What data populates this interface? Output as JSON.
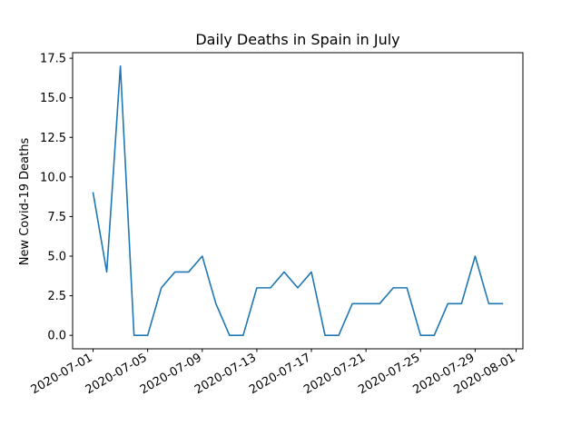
{
  "chart_data": {
    "type": "line",
    "title": "Daily Deaths in Spain in July",
    "xlabel": "",
    "ylabel": "New Covid-19 Deaths",
    "x": [
      "2020-07-01",
      "2020-07-02",
      "2020-07-03",
      "2020-07-04",
      "2020-07-05",
      "2020-07-06",
      "2020-07-07",
      "2020-07-08",
      "2020-07-09",
      "2020-07-10",
      "2020-07-11",
      "2020-07-12",
      "2020-07-13",
      "2020-07-14",
      "2020-07-15",
      "2020-07-16",
      "2020-07-17",
      "2020-07-18",
      "2020-07-19",
      "2020-07-20",
      "2020-07-21",
      "2020-07-22",
      "2020-07-23",
      "2020-07-24",
      "2020-07-25",
      "2020-07-26",
      "2020-07-27",
      "2020-07-28",
      "2020-07-29",
      "2020-07-30",
      "2020-07-31"
    ],
    "series": [
      {
        "color": "#1f77b4",
        "values": [
          9,
          4,
          17,
          0,
          0,
          3,
          4,
          4,
          5,
          2,
          0,
          0,
          3,
          3,
          4,
          3,
          4,
          0,
          0,
          2,
          2,
          2,
          3,
          3,
          0,
          0,
          2,
          2,
          5,
          2,
          2
        ]
      }
    ],
    "ylim": [
      -0.85,
      17.85
    ],
    "xlim": [
      "2020-06-29T12:00",
      "2020-08-01T12:00"
    ],
    "xticks": [
      "2020-07-01",
      "2020-07-05",
      "2020-07-09",
      "2020-07-13",
      "2020-07-17",
      "2020-07-21",
      "2020-07-25",
      "2020-07-29",
      "2020-08-01"
    ],
    "yticks": [
      "0.0",
      "2.5",
      "5.0",
      "7.5",
      "10.0",
      "12.5",
      "15.0",
      "17.5"
    ],
    "grid": false,
    "legend": "none"
  }
}
